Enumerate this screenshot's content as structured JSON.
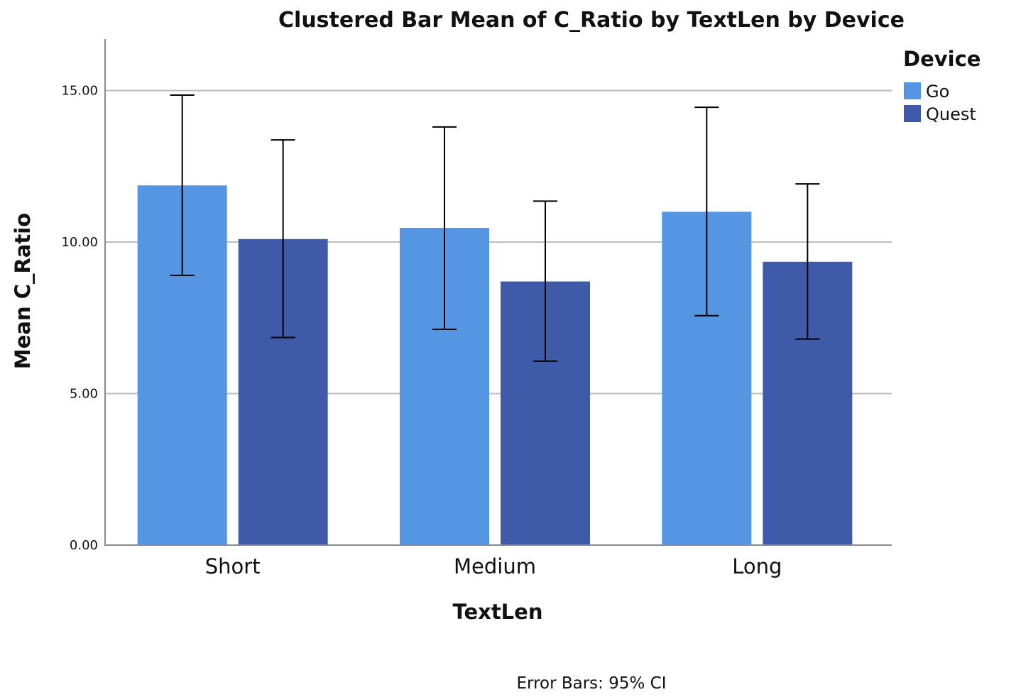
{
  "chart_data": {
    "type": "bar",
    "title": "Clustered Bar Mean of C_Ratio by TextLen by Device",
    "xlabel": "TextLen",
    "ylabel": "Mean C_Ratio",
    "categories": [
      "Short",
      "Medium",
      "Long"
    ],
    "ylim": [
      0,
      16.7
    ],
    "yticks": [
      0,
      5,
      10,
      15
    ],
    "ytick_labels": [
      "0.00",
      "5.00",
      "10.00",
      "15.00"
    ],
    "grid": true,
    "legend": {
      "title": "Device",
      "placement": "top-right"
    },
    "series": [
      {
        "name": "Go",
        "color": "#5596e3",
        "values": [
          11.87,
          10.47,
          11.0
        ],
        "ci_low": [
          8.9,
          7.12,
          7.57
        ],
        "ci_high": [
          14.85,
          13.8,
          14.45
        ]
      },
      {
        "name": "Quest",
        "color": "#3e5aa8",
        "values": [
          10.1,
          8.7,
          9.35
        ],
        "ci_low": [
          6.85,
          6.07,
          6.8
        ],
        "ci_high": [
          13.37,
          11.35,
          11.92
        ]
      }
    ],
    "footnote": "Error Bars: 95% CI"
  }
}
